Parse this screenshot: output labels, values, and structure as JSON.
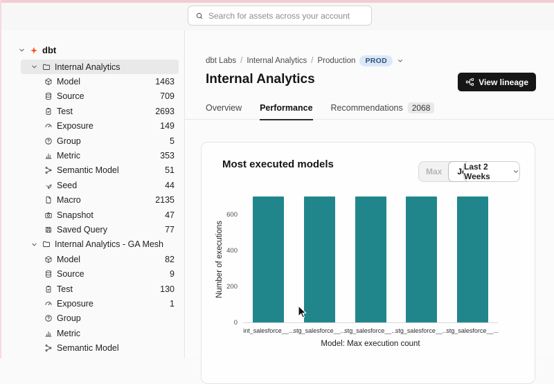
{
  "chrome": {
    "search_placeholder": "Search for assets across your account"
  },
  "sidebar": {
    "root": {
      "label": "dbt"
    },
    "sections": [
      {
        "label": "Internal Analytics",
        "selected": true,
        "items": [
          {
            "icon": "model",
            "label": "Model",
            "count": "1463"
          },
          {
            "icon": "source",
            "label": "Source",
            "count": "709"
          },
          {
            "icon": "test",
            "label": "Test",
            "count": "2693"
          },
          {
            "icon": "exposure",
            "label": "Exposure",
            "count": "149"
          },
          {
            "icon": "group",
            "label": "Group",
            "count": "5"
          },
          {
            "icon": "metric",
            "label": "Metric",
            "count": "353"
          },
          {
            "icon": "semantic",
            "label": "Semantic Model",
            "count": "51"
          },
          {
            "icon": "seed",
            "label": "Seed",
            "count": "44"
          },
          {
            "icon": "macro",
            "label": "Macro",
            "count": "2135"
          },
          {
            "icon": "snapshot",
            "label": "Snapshot",
            "count": "47"
          },
          {
            "icon": "savedquery",
            "label": "Saved Query",
            "count": "77"
          }
        ]
      },
      {
        "label": "Internal Analytics - GA Mesh",
        "selected": false,
        "items": [
          {
            "icon": "model",
            "label": "Model",
            "count": "82"
          },
          {
            "icon": "source",
            "label": "Source",
            "count": "9"
          },
          {
            "icon": "test",
            "label": "Test",
            "count": "130"
          },
          {
            "icon": "exposure",
            "label": "Exposure",
            "count": "1"
          },
          {
            "icon": "group",
            "label": "Group",
            "count": ""
          },
          {
            "icon": "metric",
            "label": "Metric",
            "count": ""
          },
          {
            "icon": "semantic",
            "label": "Semantic Model",
            "count": ""
          }
        ]
      }
    ]
  },
  "header": {
    "breadcrumb": [
      "dbt Labs",
      "Internal Analytics",
      "Production"
    ],
    "breadcrumb_separator": "/",
    "env_badge": "PROD",
    "title": "Internal Analytics",
    "view_lineage_label": "View lineage"
  },
  "tabs": [
    {
      "label": "Overview",
      "active": false
    },
    {
      "label": "Performance",
      "active": true
    },
    {
      "label": "Recommendations",
      "badge": "2068",
      "active": false
    }
  ],
  "card": {
    "title": "Most executed models",
    "toggle": [
      {
        "label": "Max",
        "active": false
      },
      {
        "label": "Job",
        "active": true
      }
    ],
    "range_selector": "Last 2 Weeks"
  },
  "chart_data": {
    "type": "bar",
    "title": "Most executed models",
    "categories": [
      "int_salesforce__...",
      "stg_salesforce__...",
      "stg_salesforce__...",
      "stg_salesforce__...",
      "stg_salesforce__..."
    ],
    "values": [
      700,
      700,
      700,
      700,
      700
    ],
    "xlabel": "Model: Max execution count",
    "ylabel": "Number of executions",
    "ylim": [
      0,
      710
    ],
    "yticks": [
      0,
      200,
      400,
      600
    ],
    "bar_color": "#21868c",
    "grid": false,
    "legend": false
  },
  "colors": {
    "bar_teal": "#21868c",
    "prod_badge_bg": "#dbe8f8",
    "prod_badge_text": "#2f5379",
    "dbt_logo_orange": "#ff4f1f",
    "lineage_button_bg": "#161616",
    "top_strip_pink": "#f3cbd2",
    "left_strip_pink": "#f6dade"
  }
}
